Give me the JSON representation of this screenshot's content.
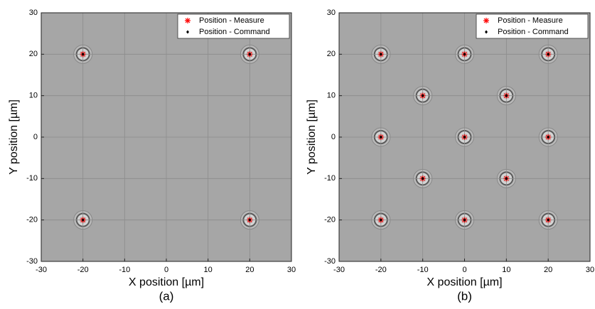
{
  "chart_data": [
    {
      "type": "scatter",
      "caption": "(a)",
      "x_label": "X position [µm]",
      "y_label": "Y position [µm]",
      "xlim": [
        -30,
        30
      ],
      "ylim": [
        -30,
        30
      ],
      "xticks": [
        -30,
        -20,
        -10,
        0,
        10,
        20,
        30
      ],
      "yticks": [
        -30,
        -20,
        -10,
        0,
        10,
        20,
        30
      ],
      "grid": true,
      "legend": "upper right",
      "series": [
        {
          "name": "Position - Measure",
          "color": "#ff0000",
          "marker": "asterisk",
          "x": [
            -20,
            20,
            -20,
            20
          ],
          "values": [
            20,
            20,
            -20,
            -20
          ]
        },
        {
          "name": "Position - Command",
          "color": "#000000",
          "marker": "diamond",
          "x": [
            -20,
            20,
            -20,
            20
          ],
          "values": [
            20,
            20,
            -20,
            -20
          ]
        }
      ]
    },
    {
      "type": "scatter",
      "caption": "(b)",
      "x_label": "X position [µm]",
      "y_label": "Y position [µm]",
      "xlim": [
        -30,
        30
      ],
      "ylim": [
        -30,
        30
      ],
      "xticks": [
        -30,
        -20,
        -10,
        0,
        10,
        20,
        30
      ],
      "yticks": [
        -30,
        -20,
        -10,
        0,
        10,
        20,
        30
      ],
      "grid": true,
      "legend": "upper right",
      "series": [
        {
          "name": "Position - Measure",
          "color": "#ff0000",
          "marker": "asterisk",
          "x": [
            -20,
            0,
            20,
            -10,
            10,
            -20,
            0,
            20,
            -10,
            10,
            -20,
            0,
            20
          ],
          "values": [
            20,
            20,
            20,
            10,
            10,
            0,
            0,
            0,
            -10,
            -10,
            -20,
            -20,
            -20
          ]
        },
        {
          "name": "Position - Command",
          "color": "#000000",
          "marker": "diamond",
          "x": [
            -20,
            0,
            20,
            -10,
            10,
            -20,
            0,
            20,
            -10,
            10,
            -20,
            0,
            20
          ],
          "values": [
            20,
            20,
            20,
            10,
            10,
            0,
            0,
            0,
            -10,
            -10,
            -20,
            -20,
            -20
          ]
        }
      ]
    }
  ]
}
